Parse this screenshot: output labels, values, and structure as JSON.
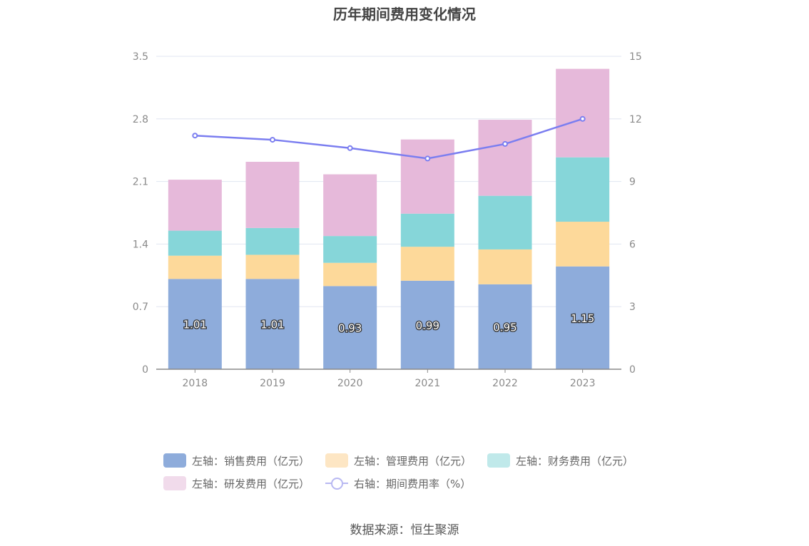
{
  "title": "历年期间费用变化情况",
  "source": "数据来源：恒生聚源",
  "chart_data": {
    "type": "bar",
    "stacked": true,
    "categories": [
      "2018",
      "2019",
      "2020",
      "2021",
      "2022",
      "2023"
    ],
    "left_axis": {
      "ylim": [
        0,
        3.5
      ],
      "ticks": [
        "0",
        "0.7",
        "1.4",
        "2.1",
        "2.8",
        "3.5"
      ]
    },
    "right_axis": {
      "ylim": [
        0,
        15
      ],
      "ticks": [
        "0",
        "3",
        "6",
        "9",
        "12",
        "15"
      ]
    },
    "grid": true,
    "legend_position": "bottom",
    "series": [
      {
        "name": "左轴：销售费用（亿元）",
        "type": "bar",
        "axis": "left",
        "color": "#8eacdb",
        "show_labels": true,
        "values": [
          1.01,
          1.01,
          0.93,
          0.99,
          0.95,
          1.15
        ]
      },
      {
        "name": "左轴：管理费用（亿元）",
        "type": "bar",
        "axis": "left",
        "color": "#fdd99a",
        "values": [
          0.26,
          0.27,
          0.26,
          0.38,
          0.39,
          0.5
        ]
      },
      {
        "name": "左轴：财务费用（亿元）",
        "type": "bar",
        "axis": "left",
        "color": "#86d6d9",
        "values": [
          0.28,
          0.3,
          0.3,
          0.37,
          0.6,
          0.72
        ]
      },
      {
        "name": "左轴：研发费用（亿元）",
        "type": "bar",
        "axis": "left",
        "color": "#e6b9da",
        "values": [
          0.57,
          0.74,
          0.69,
          0.83,
          0.85,
          0.99
        ]
      },
      {
        "name": "右轴：期间费用率（%）",
        "type": "line",
        "axis": "right",
        "color": "#7b7ef0",
        "values": [
          11.2,
          11.0,
          10.6,
          10.1,
          10.8,
          12.0
        ]
      }
    ]
  }
}
